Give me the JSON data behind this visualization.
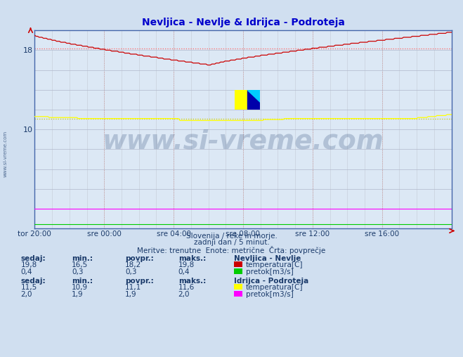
{
  "title": "Nevljica - Nevlje & Idrijca - Podroteja",
  "title_color": "#0000cc",
  "bg_color": "#d0dff0",
  "plot_bg_color": "#dce8f5",
  "grid_color": "#b0b8cc",
  "grid_color_minor": "#c8d0dc",
  "vgrid_color": "#cc9999",
  "x_labels": [
    "tor 20:00",
    "sre 00:00",
    "sre 04:00",
    "sre 08:00",
    "sre 12:00",
    "sre 16:00"
  ],
  "y_min": 0,
  "y_max": 20,
  "y_ticks": [
    10,
    18
  ],
  "n_points": 288,
  "nevlje_temp_avg": 18.2,
  "idrijca_temp_avg": 11.1,
  "line_nevlje_temp_color": "#cc0000",
  "line_nevlje_pretok_color": "#00cc00",
  "line_idrijca_temp_color": "#ffff00",
  "line_idrijca_pretok_color": "#ff00ff",
  "avg_line_nevlje_temp_color": "#ff6666",
  "avg_line_idrijca_temp_color": "#cccc00",
  "watermark_text": "www.si-vreme.com",
  "watermark_color": "#1a3a6a",
  "watermark_alpha": 0.22,
  "subtitle1": "Slovenija / reke in morje.",
  "subtitle2": "zadnji dan / 5 minut.",
  "subtitle3": "Meritve: trenutne  Enote: metrične  Črta: povprečje",
  "label_color": "#1a3a6a",
  "table_header": [
    "sedaj:",
    "min.:",
    "povpr.:",
    "maks.:"
  ],
  "nevlje_station": "Nevljica - Nevlje",
  "nevlje_sedaj_temp": "19,8",
  "nevlje_min_temp": "16,5",
  "nevlje_povpr_temp": "18,2",
  "nevlje_maks_temp": "19,8",
  "nevlje_sedaj_pretok": "0,4",
  "nevlje_min_pretok": "0,3",
  "nevlje_povpr_pretok": "0,3",
  "nevlje_maks_pretok": "0,4",
  "idrijca_station": "Idrijca - Podroteja",
  "idrijca_sedaj_temp": "11,5",
  "idrijca_min_temp": "10,9",
  "idrijca_povpr_temp": "11,1",
  "idrijca_maks_temp": "11,6",
  "idrijca_sedaj_pretok": "2,0",
  "idrijca_min_pretok": "1,9",
  "idrijca_povpr_pretok": "1,9",
  "idrijca_maks_pretok": "2,0",
  "axis_color": "#4466aa",
  "border_color": "#4466aa"
}
